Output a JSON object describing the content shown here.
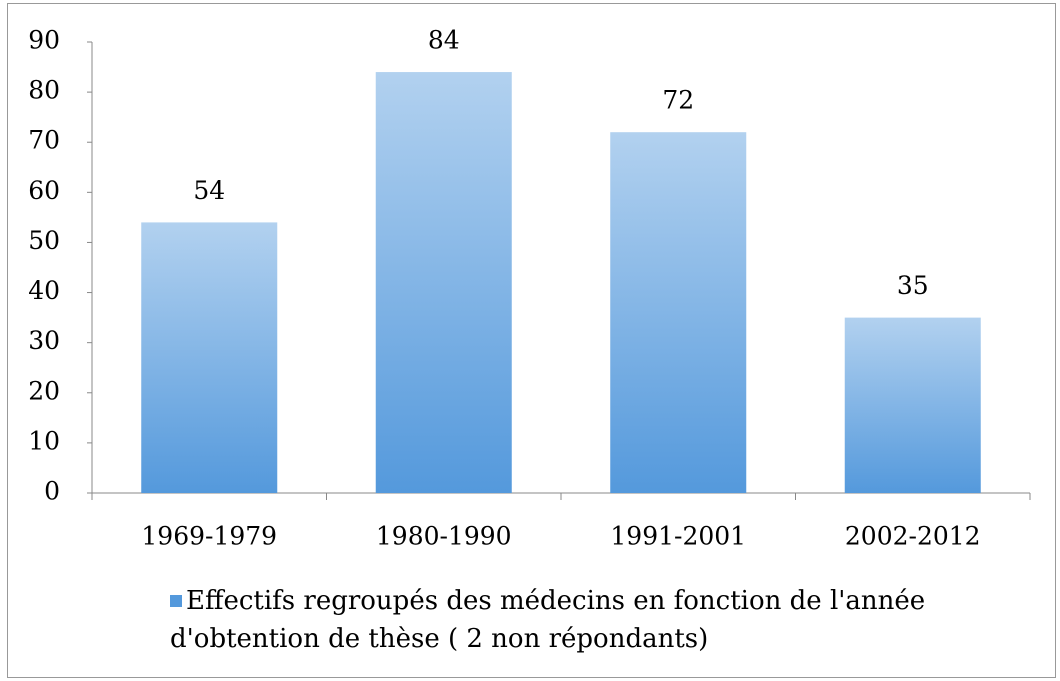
{
  "chart_data": {
    "type": "bar",
    "categories": [
      "1969-1979",
      "1980-1990",
      "1991-2001",
      "2002-2012"
    ],
    "series": [
      {
        "name": "Effectifs regroupés des médecins en fonction de l'année d'obtention de thèse ( 2 non répondants)",
        "color": "#5499dc",
        "values": [
          54,
          84,
          72,
          35
        ]
      }
    ],
    "ylim": [
      0,
      90
    ],
    "yticks": [
      0,
      10,
      20,
      30,
      40,
      50,
      60,
      70,
      80,
      90
    ],
    "grid": false,
    "legend": "bottom"
  }
}
